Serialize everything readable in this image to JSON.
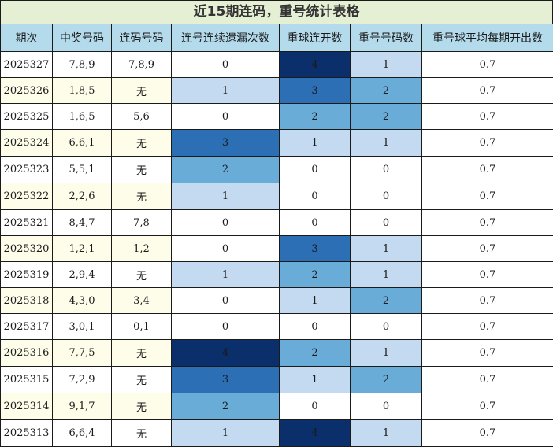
{
  "title": "近15期连码，重号统计表格",
  "headers": [
    "期次",
    "中奖号码",
    "连码号码",
    "连号连续遗漏次数",
    "重球连开数",
    "重号号码数",
    "重号球平均每期开出数"
  ],
  "rows": [
    {
      "issue": "2025327",
      "numbers": "7,8,9",
      "consecutive": "7,8,9",
      "miss": 0,
      "repeat_streak": 4,
      "repeat_count": 1,
      "avg": "0.7"
    },
    {
      "issue": "2025326",
      "numbers": "1,8,5",
      "consecutive": "无",
      "miss": 1,
      "repeat_streak": 3,
      "repeat_count": 2,
      "avg": "0.7"
    },
    {
      "issue": "2025325",
      "numbers": "1,6,5",
      "consecutive": "5,6",
      "miss": 0,
      "repeat_streak": 2,
      "repeat_count": 2,
      "avg": "0.7"
    },
    {
      "issue": "2025324",
      "numbers": "6,6,1",
      "consecutive": "无",
      "miss": 3,
      "repeat_streak": 1,
      "repeat_count": 1,
      "avg": "0.7"
    },
    {
      "issue": "2025323",
      "numbers": "5,5,1",
      "consecutive": "无",
      "miss": 2,
      "repeat_streak": 0,
      "repeat_count": 0,
      "avg": "0.7"
    },
    {
      "issue": "2025322",
      "numbers": "2,2,6",
      "consecutive": "无",
      "miss": 1,
      "repeat_streak": 0,
      "repeat_count": 0,
      "avg": "0.7"
    },
    {
      "issue": "2025321",
      "numbers": "8,4,7",
      "consecutive": "7,8",
      "miss": 0,
      "repeat_streak": 0,
      "repeat_count": 0,
      "avg": "0.7"
    },
    {
      "issue": "2025320",
      "numbers": "1,2,1",
      "consecutive": "1,2",
      "miss": 0,
      "repeat_streak": 3,
      "repeat_count": 1,
      "avg": "0.7"
    },
    {
      "issue": "2025319",
      "numbers": "2,9,4",
      "consecutive": "无",
      "miss": 1,
      "repeat_streak": 2,
      "repeat_count": 1,
      "avg": "0.7"
    },
    {
      "issue": "2025318",
      "numbers": "4,3,0",
      "consecutive": "3,4",
      "miss": 0,
      "repeat_streak": 1,
      "repeat_count": 2,
      "avg": "0.7"
    },
    {
      "issue": "2025317",
      "numbers": "3,0,1",
      "consecutive": "0,1",
      "miss": 0,
      "repeat_streak": 0,
      "repeat_count": 0,
      "avg": "0.7"
    },
    {
      "issue": "2025316",
      "numbers": "7,7,5",
      "consecutive": "无",
      "miss": 4,
      "repeat_streak": 2,
      "repeat_count": 1,
      "avg": "0.7"
    },
    {
      "issue": "2025315",
      "numbers": "7,2,9",
      "consecutive": "无",
      "miss": 3,
      "repeat_streak": 1,
      "repeat_count": 2,
      "avg": "0.7"
    },
    {
      "issue": "2025314",
      "numbers": "9,1,7",
      "consecutive": "无",
      "miss": 2,
      "repeat_streak": 0,
      "repeat_count": 0,
      "avg": "0.7"
    },
    {
      "issue": "2025313",
      "numbers": "6,6,4",
      "consecutive": "无",
      "miss": 1,
      "repeat_streak": 4,
      "repeat_count": 1,
      "avg": "0.7"
    }
  ],
  "colors": {
    "title_bg": "#e5efd3",
    "header_bg": "#b4dbec",
    "alt_row_bg": "#fefde9",
    "heat_0": "#ffffff",
    "heat_1": "#c4daf0",
    "heat_2": "#69acd8",
    "heat_3": "#2c6fb4",
    "heat_4": "#0b2f6b"
  }
}
